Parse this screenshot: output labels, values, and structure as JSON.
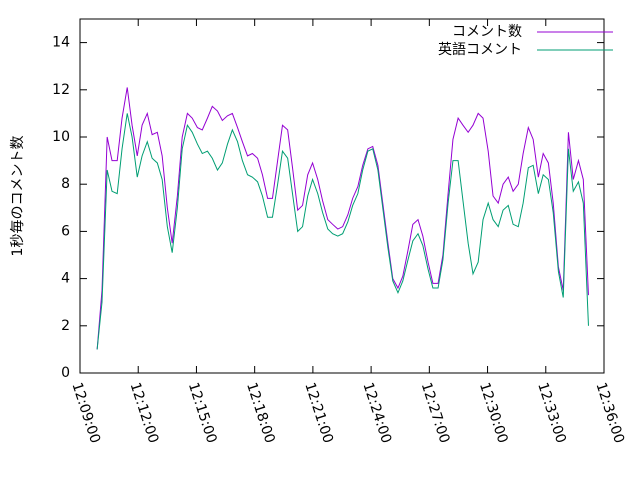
{
  "chart_data": {
    "type": "line",
    "ylabel": "1秒毎のコメント数",
    "x": [
      "12:09:53",
      "12:10:08",
      "12:10:24",
      "12:10:39",
      "12:10:55",
      "12:11:10",
      "12:11:26",
      "12:11:41",
      "12:11:57",
      "12:12:12",
      "12:12:28",
      "12:12:43",
      "12:12:59",
      "12:13:14",
      "12:13:30",
      "12:13:45",
      "12:14:01",
      "12:14:16",
      "12:14:32",
      "12:14:47",
      "12:15:03",
      "12:15:18",
      "12:15:34",
      "12:15:49",
      "12:16:05",
      "12:16:20",
      "12:16:36",
      "12:16:51",
      "12:17:07",
      "12:17:22",
      "12:17:38",
      "12:17:53",
      "12:18:09",
      "12:18:24",
      "12:18:40",
      "12:18:55",
      "12:19:11",
      "12:19:26",
      "12:19:42",
      "12:19:57",
      "12:20:13",
      "12:20:28",
      "12:20:44",
      "12:20:59",
      "12:21:15",
      "12:21:30",
      "12:21:46",
      "12:22:01",
      "12:22:17",
      "12:22:32",
      "12:22:48",
      "12:23:03",
      "12:23:19",
      "12:23:34",
      "12:23:50",
      "12:24:05",
      "12:24:21",
      "12:24:36",
      "12:24:52",
      "12:25:07",
      "12:25:23",
      "12:25:38",
      "12:25:54",
      "12:26:09",
      "12:26:25",
      "12:26:40",
      "12:26:56",
      "12:27:11",
      "12:27:27",
      "12:27:42",
      "12:27:58",
      "12:28:13",
      "12:28:29",
      "12:28:44",
      "12:29:00",
      "12:29:15",
      "12:29:31",
      "12:29:46",
      "12:30:02",
      "12:30:17",
      "12:30:33",
      "12:30:48",
      "12:31:04",
      "12:31:19",
      "12:31:35",
      "12:31:50",
      "12:32:06",
      "12:32:21",
      "12:32:37",
      "12:32:52",
      "12:33:08",
      "12:33:23",
      "12:33:39",
      "12:33:54",
      "12:34:10",
      "12:34:25",
      "12:34:41",
      "12:34:56",
      "12:35:12"
    ],
    "series": [
      {
        "name": "コメント数",
        "color": "#9400d3",
        "values": [
          1,
          3.5,
          10,
          9,
          9,
          10.8,
          12.1,
          10.5,
          9.2,
          10.5,
          11,
          10.1,
          10.2,
          9.2,
          7,
          5.5,
          7.5,
          10,
          11,
          10.8,
          10.4,
          10.3,
          10.8,
          11.3,
          11.1,
          10.7,
          10.9,
          11,
          10.4,
          9.8,
          9.2,
          9.3,
          9.1,
          8.4,
          7.4,
          7.4,
          9,
          10.5,
          10.3,
          8.7,
          6.9,
          7.1,
          8.4,
          8.9,
          8.2,
          7.3,
          6.5,
          6.3,
          6.1,
          6.2,
          6.7,
          7.4,
          7.9,
          8.8,
          9.5,
          9.6,
          8.8,
          7.2,
          5.5,
          4,
          3.6,
          4.1,
          5.2,
          6.3,
          6.5,
          5.8,
          4.7,
          3.8,
          3.8,
          5,
          7.6,
          9.9,
          10.8,
          10.5,
          10.2,
          10.5,
          11,
          10.8,
          9.4,
          7.5,
          7.2,
          8,
          8.3,
          7.7,
          8,
          9.3,
          10.4,
          9.9,
          8.3,
          9.3,
          8.9,
          7.2,
          4.5,
          3.5,
          10.2,
          8.2,
          9,
          8.2,
          3.3
        ]
      },
      {
        "name": "英語コメント",
        "color": "#009e73",
        "values": [
          1,
          3,
          8.6,
          7.7,
          7.6,
          9.5,
          11,
          10,
          8.3,
          9.2,
          9.8,
          9.1,
          8.9,
          8.2,
          6.2,
          5.1,
          7,
          9.5,
          10.5,
          10.2,
          9.7,
          9.3,
          9.4,
          9.1,
          8.6,
          8.9,
          9.7,
          10.3,
          9.8,
          9,
          8.4,
          8.3,
          8.1,
          7.5,
          6.6,
          6.6,
          8,
          9.4,
          9.1,
          7.6,
          6,
          6.2,
          7.5,
          8.2,
          7.6,
          6.8,
          6.1,
          5.9,
          5.8,
          5.9,
          6.4,
          7.1,
          7.6,
          8.6,
          9.4,
          9.5,
          8.6,
          7,
          5.3,
          3.9,
          3.4,
          3.9,
          4.8,
          5.6,
          5.9,
          5.4,
          4.4,
          3.6,
          3.6,
          4.8,
          7.2,
          9,
          9,
          7.3,
          5.5,
          4.2,
          4.7,
          6.5,
          7.2,
          6.5,
          6.2,
          6.9,
          7.1,
          6.3,
          6.2,
          7.2,
          8.7,
          8.8,
          7.6,
          8.4,
          8.2,
          6.8,
          4.3,
          3.2,
          9.5,
          7.7,
          8.1,
          7.2,
          2
        ]
      }
    ],
    "xlim": [
      "12:09:00",
      "12:36:00"
    ],
    "xticks": [
      "12:09:00",
      "12:12:00",
      "12:15:00",
      "12:18:00",
      "12:21:00",
      "12:24:00",
      "12:27:00",
      "12:30:00",
      "12:33:00",
      "12:36:00"
    ],
    "ylim": [
      0,
      15
    ],
    "yticks": [
      0,
      2,
      4,
      6,
      8,
      10,
      12,
      14
    ],
    "legend": "top-right"
  }
}
